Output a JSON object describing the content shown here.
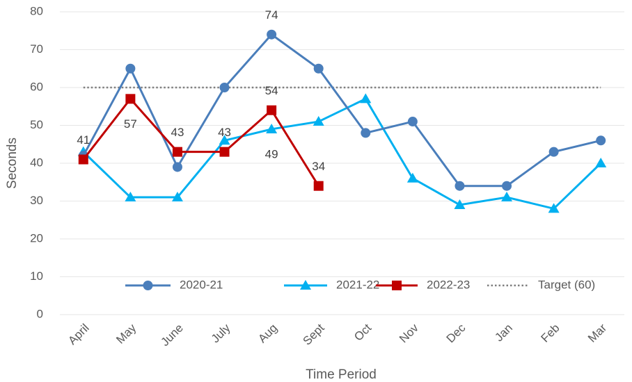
{
  "chart_data": {
    "type": "line",
    "x_label": "Time Period",
    "y_label": "Seconds",
    "categories": [
      "April",
      "May",
      "June",
      "July",
      "Aug",
      "Sept",
      "Oct",
      "Nov",
      "Dec",
      "Jan",
      "Feb",
      "Mar"
    ],
    "ylim": [
      0,
      80
    ],
    "yticks": [
      0,
      10,
      20,
      30,
      40,
      50,
      60,
      70,
      80
    ],
    "grid": true,
    "legend": "bottom",
    "series": [
      {
        "name": "2020-21",
        "color": "#4a7ebb",
        "marker": "circle",
        "values": [
          42,
          65,
          39,
          60,
          74,
          65,
          48,
          51,
          34,
          34,
          43,
          46
        ],
        "data_labels": [
          false,
          false,
          false,
          false,
          true,
          false,
          false,
          false,
          false,
          false,
          false,
          false
        ]
      },
      {
        "name": "2021-22",
        "color": "#00b0f0",
        "marker": "triangle",
        "values": [
          43,
          31,
          31,
          46,
          49,
          51,
          57,
          36,
          29,
          31,
          28,
          40
        ],
        "data_labels": [
          false,
          false,
          false,
          false,
          true,
          false,
          false,
          false,
          false,
          false,
          false,
          false
        ]
      },
      {
        "name": "2022-23",
        "color": "#c00000",
        "marker": "square",
        "values": [
          41,
          57,
          43,
          43,
          54,
          34,
          null,
          null,
          null,
          null,
          null,
          null
        ],
        "data_labels": [
          true,
          true,
          true,
          true,
          true,
          true,
          false,
          false,
          false,
          false,
          false,
          false
        ]
      },
      {
        "name": "Target (60)",
        "color": "#7f7f7f",
        "marker": "none",
        "dash": true,
        "values": [
          60,
          60,
          60,
          60,
          60,
          60,
          60,
          60,
          60,
          60,
          60,
          60
        ]
      }
    ]
  }
}
